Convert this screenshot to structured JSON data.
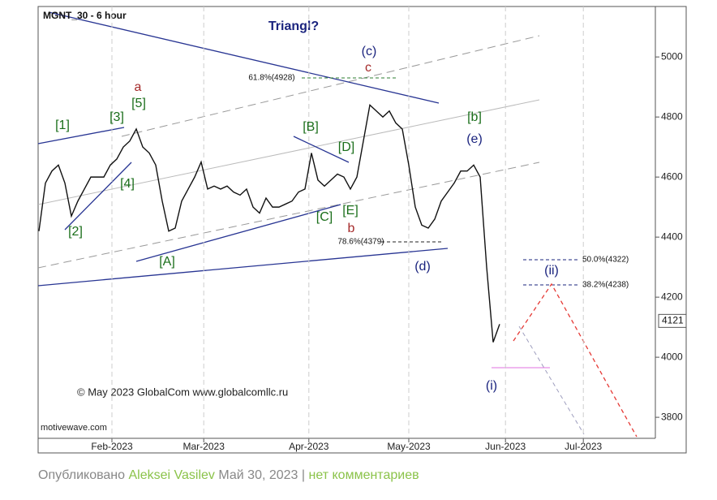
{
  "chart_data": {
    "type": "line",
    "title": "MGNT_30 - 6 hour",
    "subtitle": "Triangl?",
    "copyright": "© May 2023 GlobalCom www.globalcomllc.ru",
    "source": "motivewave.com",
    "last_price": 4121,
    "color": "#111111",
    "values": [
      4420,
      4580,
      4620,
      4640,
      4580,
      4470,
      4520,
      4560,
      4600,
      4600,
      4600,
      4640,
      4660,
      4700,
      4720,
      4760,
      4700,
      4680,
      4640,
      4520,
      4420,
      4430,
      4520,
      4560,
      4600,
      4650,
      4560,
      4570,
      4560,
      4570,
      4550,
      4540,
      4560,
      4500,
      4480,
      4530,
      4500,
      4500,
      4510,
      4520,
      4550,
      4560,
      4680,
      4590,
      4570,
      4590,
      4610,
      4600,
      4560,
      4600,
      4720,
      4840,
      4820,
      4800,
      4820,
      4780,
      4760,
      4640,
      4500,
      4440,
      4430,
      4460,
      4520,
      4550,
      4580,
      4620,
      4620,
      4640,
      4600,
      4300,
      4050,
      4110
    ],
    "xlim": [
      0,
      95
    ],
    "xticks": [
      {
        "value": 11.25,
        "label": "Feb-2023"
      },
      {
        "value": 25.4,
        "label": "Mar-2023"
      },
      {
        "value": 41.6,
        "label": "Apr-2023"
      },
      {
        "value": 57,
        "label": "May-2023"
      },
      {
        "value": 71.9,
        "label": "Jun-2023"
      },
      {
        "value": 83.9,
        "label": "Jul-2023"
      }
    ],
    "ylim": [
      3730,
      5168
    ],
    "yticks": [
      3800,
      4000,
      4200,
      4400,
      4600,
      4800,
      5000
    ],
    "annotations": [
      {
        "text": "[1]",
        "color": "#1a6e1a"
      },
      {
        "text": "[2]",
        "color": "#1a6e1a"
      },
      {
        "text": "[3]",
        "color": "#1a6e1a"
      },
      {
        "text": "[4]",
        "color": "#1a6e1a"
      },
      {
        "text": "[5]",
        "color": "#1a6e1a"
      },
      {
        "text": "a",
        "color": "#a52a2a"
      },
      {
        "text": "[A]",
        "color": "#1a6e1a"
      },
      {
        "text": "[B]",
        "color": "#1a6e1a"
      },
      {
        "text": "[C]",
        "color": "#1a6e1a"
      },
      {
        "text": "[D]",
        "color": "#1a6e1a"
      },
      {
        "text": "[E]",
        "color": "#1a6e1a"
      },
      {
        "text": "b",
        "color": "#a52a2a"
      },
      {
        "text": "(c)",
        "color": "#1a237e"
      },
      {
        "text": "c",
        "color": "#a52a2a"
      },
      {
        "text": "[b]",
        "color": "#1a6e1a"
      },
      {
        "text": "(e)",
        "color": "#1a237e"
      },
      {
        "text": "(d)",
        "color": "#1a237e"
      },
      {
        "text": "(i)",
        "color": "#1a237e"
      },
      {
        "text": "(ii)",
        "color": "#1a237e"
      },
      {
        "text": "61.8%(4928)",
        "color": "#111111"
      },
      {
        "text": "78.6%(4379)",
        "color": "#111111"
      },
      {
        "text": "50.0%(4322)",
        "color": "#111111"
      },
      {
        "text": "38.2%(4238)",
        "color": "#111111"
      }
    ]
  },
  "footer": {
    "prefix": "Опубликовано",
    "author": "Aleksei Vasilev",
    "date": "Май 30, 2023",
    "separator": "|",
    "comments": "нет комментариев"
  }
}
